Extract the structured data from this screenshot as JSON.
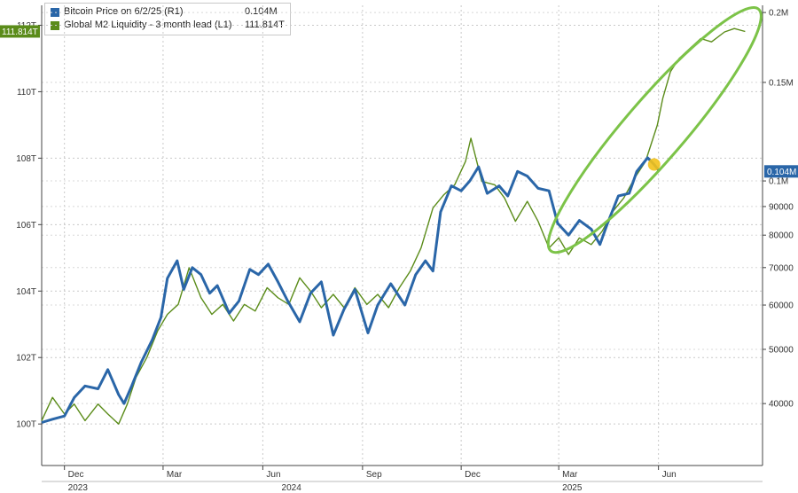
{
  "chart_data": {
    "type": "line",
    "title": "",
    "x_ticks": [
      {
        "label": "Dec",
        "date": "2023-12-01"
      },
      {
        "label": "Mar",
        "date": "2024-03-01"
      },
      {
        "label": "Jun",
        "date": "2024-06-01"
      },
      {
        "label": "Sep",
        "date": "2024-09-01"
      },
      {
        "label": "Dec",
        "date": "2024-12-01"
      },
      {
        "label": "Mar",
        "date": "2025-03-01"
      },
      {
        "label": "Jun",
        "date": "2025-06-01"
      }
    ],
    "x_year_labels": [
      {
        "label": "2023",
        "date": "2023-12-01"
      },
      {
        "label": "2024",
        "date": "2024-06-15"
      },
      {
        "label": "2025",
        "date": "2025-03-01"
      }
    ],
    "y_left": {
      "ticks": [
        "100T",
        "102T",
        "104T",
        "106T",
        "108T",
        "110T",
        "112T"
      ],
      "values": [
        100,
        102,
        104,
        106,
        108,
        110,
        112
      ],
      "range": [
        98.75,
        112.6
      ],
      "unit": "T"
    },
    "y_right": {
      "scale": "log",
      "ticks": [
        {
          "label": "40000",
          "value": 40000
        },
        {
          "label": "50000",
          "value": 50000
        },
        {
          "label": "60000",
          "value": 60000
        },
        {
          "label": "70000",
          "value": 70000
        },
        {
          "label": "80000",
          "value": 80000
        },
        {
          "label": "90000",
          "value": 90000
        },
        {
          "label": "0.1M",
          "value": 100000
        },
        {
          "label": "0.15M",
          "value": 150000
        },
        {
          "label": "0.2M",
          "value": 200000
        }
      ],
      "range": [
        31000,
        206000
      ]
    },
    "grid": true,
    "legend_position": "top-left",
    "series": [
      {
        "name": "Bitcoin Price on 6/2/25 (R1)",
        "legend_value": "0.104M",
        "last_value_label": "0.104M",
        "axis": "right",
        "color": "#2a66a8",
        "points": [
          [
            "2023-11-10",
            37000
          ],
          [
            "2023-11-20",
            37500
          ],
          [
            "2023-12-01",
            38000
          ],
          [
            "2023-12-10",
            41000
          ],
          [
            "2023-12-20",
            43000
          ],
          [
            "2024-01-01",
            42500
          ],
          [
            "2024-01-10",
            46000
          ],
          [
            "2024-01-20",
            41500
          ],
          [
            "2024-01-25",
            40000
          ],
          [
            "2024-02-01",
            43000
          ],
          [
            "2024-02-10",
            47500
          ],
          [
            "2024-02-20",
            52000
          ],
          [
            "2024-02-28",
            57000
          ],
          [
            "2024-03-05",
            67000
          ],
          [
            "2024-03-14",
            72000
          ],
          [
            "2024-03-20",
            64000
          ],
          [
            "2024-03-28",
            70000
          ],
          [
            "2024-04-05",
            68000
          ],
          [
            "2024-04-13",
            63000
          ],
          [
            "2024-04-20",
            65000
          ],
          [
            "2024-05-01",
            58000
          ],
          [
            "2024-05-10",
            61000
          ],
          [
            "2024-05-20",
            69500
          ],
          [
            "2024-05-28",
            68000
          ],
          [
            "2024-06-06",
            71000
          ],
          [
            "2024-06-15",
            66000
          ],
          [
            "2024-06-24",
            61000
          ],
          [
            "2024-07-05",
            56000
          ],
          [
            "2024-07-15",
            63000
          ],
          [
            "2024-07-25",
            66000
          ],
          [
            "2024-08-05",
            53000
          ],
          [
            "2024-08-15",
            59000
          ],
          [
            "2024-08-25",
            64000
          ],
          [
            "2024-09-06",
            53500
          ],
          [
            "2024-09-15",
            60000
          ],
          [
            "2024-09-27",
            65500
          ],
          [
            "2024-10-10",
            60000
          ],
          [
            "2024-10-20",
            68000
          ],
          [
            "2024-10-29",
            72000
          ],
          [
            "2024-11-05",
            69000
          ],
          [
            "2024-11-12",
            88000
          ],
          [
            "2024-11-22",
            98000
          ],
          [
            "2024-12-01",
            96000
          ],
          [
            "2024-12-09",
            100000
          ],
          [
            "2024-12-17",
            106000
          ],
          [
            "2024-12-25",
            95000
          ],
          [
            "2025-01-05",
            98000
          ],
          [
            "2025-01-13",
            94000
          ],
          [
            "2025-01-22",
            104000
          ],
          [
            "2025-01-31",
            102000
          ],
          [
            "2025-02-10",
            97000
          ],
          [
            "2025-02-20",
            96000
          ],
          [
            "2025-02-28",
            84000
          ],
          [
            "2025-03-10",
            80000
          ],
          [
            "2025-03-20",
            85000
          ],
          [
            "2025-03-31",
            82000
          ],
          [
            "2025-04-08",
            77000
          ],
          [
            "2025-04-15",
            84000
          ],
          [
            "2025-04-25",
            94000
          ],
          [
            "2025-05-05",
            95000
          ],
          [
            "2025-05-12",
            104000
          ],
          [
            "2025-05-22",
            110000
          ],
          [
            "2025-05-28",
            107000
          ],
          [
            "2025-06-02",
            104000
          ]
        ]
      },
      {
        "name": "Global M2 Liquidity - 3 month lead (L1)",
        "legend_value": "111.814T",
        "last_value_label": "111.814T",
        "axis": "left",
        "color": "#5b8c1a",
        "points": [
          [
            "2023-11-10",
            100.1
          ],
          [
            "2023-11-20",
            100.8
          ],
          [
            "2023-12-01",
            100.3
          ],
          [
            "2023-12-10",
            100.6
          ],
          [
            "2023-12-20",
            100.1
          ],
          [
            "2024-01-01",
            100.6
          ],
          [
            "2024-01-10",
            100.3
          ],
          [
            "2024-01-20",
            100.0
          ],
          [
            "2024-01-28",
            100.6
          ],
          [
            "2024-02-05",
            101.4
          ],
          [
            "2024-02-15",
            102.0
          ],
          [
            "2024-02-25",
            102.8
          ],
          [
            "2024-03-05",
            103.3
          ],
          [
            "2024-03-15",
            103.6
          ],
          [
            "2024-03-25",
            104.7
          ],
          [
            "2024-04-05",
            103.8
          ],
          [
            "2024-04-15",
            103.3
          ],
          [
            "2024-04-25",
            103.6
          ],
          [
            "2024-05-05",
            103.1
          ],
          [
            "2024-05-15",
            103.6
          ],
          [
            "2024-05-25",
            103.4
          ],
          [
            "2024-06-05",
            104.1
          ],
          [
            "2024-06-15",
            103.8
          ],
          [
            "2024-06-25",
            103.6
          ],
          [
            "2024-07-05",
            104.4
          ],
          [
            "2024-07-15",
            104.0
          ],
          [
            "2024-07-25",
            103.5
          ],
          [
            "2024-08-05",
            103.9
          ],
          [
            "2024-08-15",
            103.5
          ],
          [
            "2024-08-25",
            104.1
          ],
          [
            "2024-09-05",
            103.6
          ],
          [
            "2024-09-15",
            103.9
          ],
          [
            "2024-09-25",
            103.5
          ],
          [
            "2024-10-05",
            104.1
          ],
          [
            "2024-10-15",
            104.6
          ],
          [
            "2024-10-25",
            105.3
          ],
          [
            "2024-11-05",
            106.5
          ],
          [
            "2024-11-15",
            106.9
          ],
          [
            "2024-11-25",
            107.2
          ],
          [
            "2024-12-05",
            107.9
          ],
          [
            "2024-12-10",
            108.6
          ],
          [
            "2024-12-20",
            107.3
          ],
          [
            "2025-01-01",
            107.2
          ],
          [
            "2025-01-10",
            106.8
          ],
          [
            "2025-01-20",
            106.1
          ],
          [
            "2025-01-31",
            106.7
          ],
          [
            "2025-02-10",
            106.1
          ],
          [
            "2025-02-20",
            105.3
          ],
          [
            "2025-03-01",
            105.6
          ],
          [
            "2025-03-10",
            105.1
          ],
          [
            "2025-03-20",
            105.6
          ],
          [
            "2025-03-31",
            105.4
          ],
          [
            "2025-04-10",
            105.8
          ],
          [
            "2025-04-20",
            106.4
          ],
          [
            "2025-04-30",
            106.8
          ],
          [
            "2025-05-10",
            107.4
          ],
          [
            "2025-05-20",
            107.9
          ],
          [
            "2025-05-25",
            108.4
          ],
          [
            "2025-05-31",
            109.0
          ],
          [
            "2025-06-05",
            109.8
          ],
          [
            "2025-06-12",
            110.6
          ],
          [
            "2025-06-20",
            111.0
          ],
          [
            "2025-06-30",
            111.3
          ],
          [
            "2025-07-10",
            111.6
          ],
          [
            "2025-07-20",
            111.5
          ],
          [
            "2025-08-01",
            111.8
          ],
          [
            "2025-08-10",
            111.9
          ],
          [
            "2025-08-20",
            111.814
          ]
        ]
      }
    ],
    "annotations": {
      "ellipse": {
        "color": "#7cc348",
        "from_date": "2025-03-01",
        "to_date": "2025-08-25"
      },
      "marker": {
        "color": "#f2c21b",
        "date": "2025-05-28",
        "series": "Bitcoin Price on 6/2/25 (R1)"
      }
    }
  }
}
